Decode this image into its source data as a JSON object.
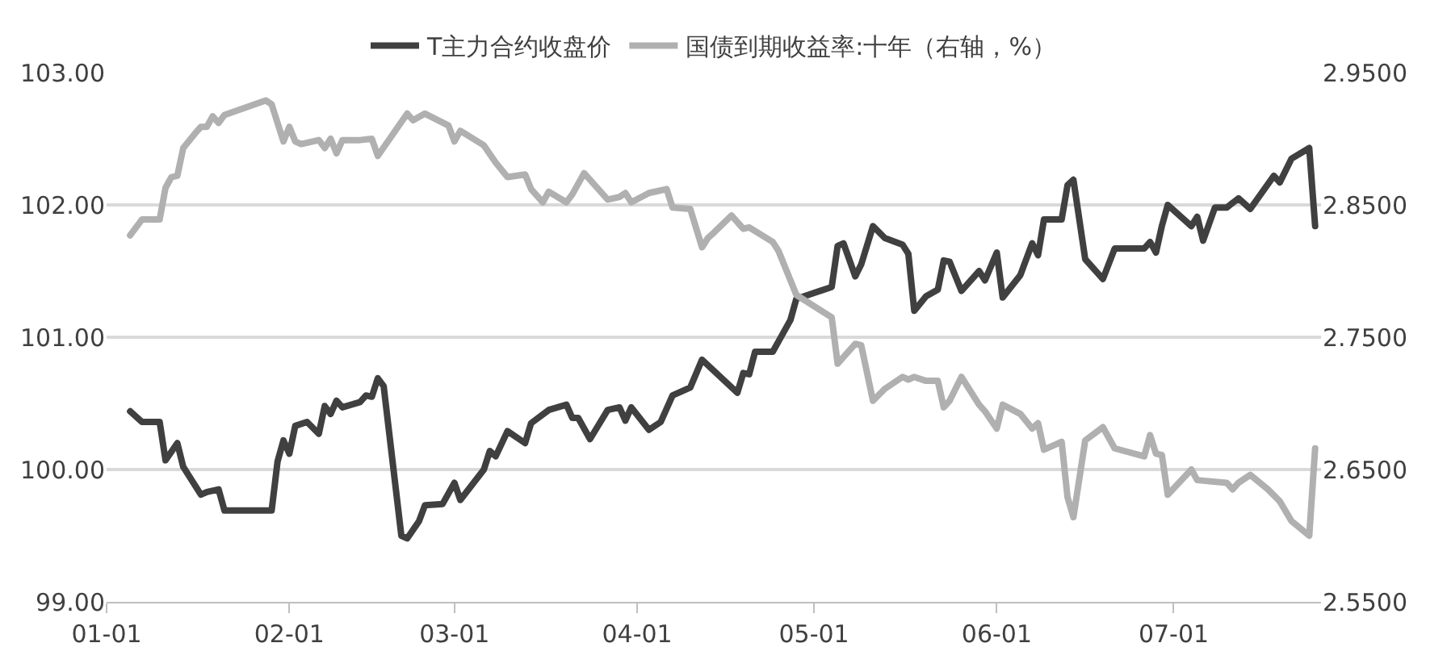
{
  "chart_data": {
    "type": "line",
    "xlim": [
      "--01-01",
      "--07-26"
    ],
    "xticks": [
      {
        "value": "--01-01",
        "label": "01-01"
      },
      {
        "value": "--02-01",
        "label": "02-01"
      },
      {
        "value": "--03-01",
        "label": "03-01"
      },
      {
        "value": "--04-01",
        "label": "04-01"
      },
      {
        "value": "--05-01",
        "label": "05-01"
      },
      {
        "value": "--06-01",
        "label": "06-01"
      },
      {
        "value": "--07-01",
        "label": "07-01"
      }
    ],
    "ylim": [
      99,
      103
    ],
    "yticks": [
      {
        "value": 99,
        "label": "99.00"
      },
      {
        "value": 100,
        "label": "100.00"
      },
      {
        "value": 101,
        "label": "101.00"
      },
      {
        "value": 102,
        "label": "102.00"
      },
      {
        "value": 103,
        "label": "103.00"
      }
    ],
    "y2lim": [
      2.55,
      2.95
    ],
    "y2ticks": [
      {
        "value": 2.55,
        "label": "2.5500"
      },
      {
        "value": 2.65,
        "label": "2.6500"
      },
      {
        "value": 2.75,
        "label": "2.7500"
      },
      {
        "value": 2.85,
        "label": "2.8500"
      },
      {
        "value": 2.95,
        "label": "2.9500"
      }
    ],
    "grid": "y",
    "legend": "top",
    "marker": "none",
    "line_style": "solid",
    "series": [
      {
        "name": "T主力合约收盘价",
        "color": "#404040",
        "x": [
          "--01-05",
          "--01-07",
          "--01-10",
          "--01-11",
          "--01-13",
          "--01-14",
          "--01-17",
          "--01-18",
          "--01-20",
          "--01-21",
          "--01-29",
          "--01-30",
          "--01-31",
          "--02-01",
          "--02-02",
          "--02-04",
          "--02-06",
          "--02-07",
          "--02-08",
          "--02-09",
          "--02-10",
          "--02-13",
          "--02-14",
          "--02-15",
          "--02-16",
          "--02-17",
          "--02-20",
          "--02-21",
          "--02-23",
          "--02-24",
          "--02-27",
          "--03-01",
          "--03-02",
          "--03-06",
          "--03-07",
          "--03-08",
          "--03-10",
          "--03-13",
          "--03-14",
          "--03-17",
          "--03-20",
          "--03-21",
          "--03-22",
          "--03-24",
          "--03-27",
          "--03-29",
          "--03-30",
          "--03-31",
          "--04-03",
          "--04-05",
          "--04-07",
          "--04-10",
          "--04-12",
          "--04-18",
          "--04-19",
          "--04-20",
          "--04-21",
          "--04-24",
          "--04-25",
          "--04-27",
          "--04-28",
          "--05-04",
          "--05-05",
          "--05-06",
          "--05-08",
          "--05-09",
          "--05-11",
          "--05-13",
          "--05-16",
          "--05-17",
          "--05-18",
          "--05-20",
          "--05-22",
          "--05-23",
          "--05-24",
          "--05-26",
          "--05-29",
          "--05-30",
          "--06-01",
          "--06-02",
          "--06-05",
          "--06-07",
          "--06-08",
          "--06-09",
          "--06-12",
          "--06-13",
          "--06-14",
          "--06-16",
          "--06-19",
          "--06-21",
          "--06-26",
          "--06-27",
          "--06-28",
          "--06-29",
          "--06-30",
          "--07-04",
          "--07-05",
          "--07-06",
          "--07-08",
          "--07-10",
          "--07-12",
          "--07-14",
          "--07-18",
          "--07-19",
          "--07-21",
          "--07-24",
          "--07-25"
        ],
        "values": [
          100.44,
          100.36,
          100.36,
          100.07,
          100.2,
          100.02,
          99.81,
          99.83,
          99.85,
          99.69,
          99.69,
          100.06,
          100.22,
          100.12,
          100.33,
          100.36,
          100.27,
          100.48,
          100.42,
          100.52,
          100.47,
          100.51,
          100.56,
          100.55,
          100.69,
          100.63,
          99.5,
          99.48,
          99.61,
          99.73,
          99.74,
          99.9,
          99.77,
          100.0,
          100.14,
          100.1,
          100.29,
          100.2,
          100.35,
          100.45,
          100.49,
          100.39,
          100.39,
          100.23,
          100.45,
          100.47,
          100.37,
          100.47,
          100.3,
          100.36,
          100.56,
          100.62,
          100.83,
          100.58,
          100.73,
          100.72,
          100.89,
          100.89,
          100.97,
          101.13,
          101.29,
          101.38,
          101.69,
          101.71,
          101.46,
          101.55,
          101.84,
          101.75,
          101.7,
          101.63,
          101.2,
          101.31,
          101.36,
          101.58,
          101.57,
          101.35,
          101.5,
          101.43,
          101.64,
          101.3,
          101.47,
          101.71,
          101.62,
          101.89,
          101.89,
          102.15,
          102.19,
          101.59,
          101.44,
          101.67,
          101.67,
          101.72,
          101.64,
          101.84,
          102.0,
          101.84,
          101.91,
          101.73,
          101.98,
          101.98,
          102.05,
          101.97,
          102.22,
          102.17,
          102.35,
          102.43,
          101.84
        ]
      },
      {
        "name": "国债到期收益率:十年（右轴，%）",
        "color": "#b0b0b0",
        "axis": "y2",
        "x": [
          "--01-05",
          "--01-07",
          "--01-10",
          "--01-11",
          "--01-12",
          "--01-13",
          "--01-14",
          "--01-16",
          "--01-17",
          "--01-18",
          "--01-19",
          "--01-20",
          "--01-21",
          "--01-28",
          "--01-29",
          "--01-31",
          "--02-01",
          "--02-02",
          "--02-03",
          "--02-06",
          "--02-07",
          "--02-08",
          "--02-09",
          "--02-10",
          "--02-13",
          "--02-15",
          "--02-16",
          "--02-21",
          "--02-22",
          "--02-24",
          "--02-28",
          "--03-01",
          "--03-02",
          "--03-06",
          "--03-08",
          "--03-10",
          "--03-13",
          "--03-14",
          "--03-16",
          "--03-17",
          "--03-20",
          "--03-21",
          "--03-23",
          "--03-27",
          "--03-29",
          "--03-30",
          "--03-31",
          "--04-03",
          "--04-06",
          "--04-07",
          "--04-10",
          "--04-12",
          "--04-13",
          "--04-14",
          "--04-17",
          "--04-19",
          "--04-20",
          "--04-24",
          "--04-25",
          "--04-28",
          "--05-04",
          "--05-05",
          "--05-08",
          "--05-09",
          "--05-11",
          "--05-13",
          "--05-16",
          "--05-17",
          "--05-18",
          "--05-20",
          "--05-22",
          "--05-23",
          "--05-24",
          "--05-26",
          "--05-29",
          "--05-30",
          "--06-01",
          "--06-02",
          "--06-05",
          "--06-07",
          "--06-08",
          "--06-09",
          "--06-12",
          "--06-13",
          "--06-14",
          "--06-16",
          "--06-19",
          "--06-21",
          "--06-26",
          "--06-27",
          "--06-28",
          "--06-29",
          "--06-30",
          "--07-04",
          "--07-05",
          "--07-10",
          "--07-11",
          "--07-12",
          "--07-14",
          "--07-17",
          "--07-19",
          "--07-21",
          "--07-24",
          "--07-25"
        ],
        "values": [
          2.827,
          2.839,
          2.839,
          2.863,
          2.871,
          2.872,
          2.893,
          2.904,
          2.909,
          2.909,
          2.917,
          2.912,
          2.918,
          2.929,
          2.926,
          2.898,
          2.909,
          2.898,
          2.896,
          2.899,
          2.893,
          2.9,
          2.889,
          2.899,
          2.899,
          2.9,
          2.887,
          2.919,
          2.914,
          2.919,
          2.91,
          2.898,
          2.906,
          2.895,
          2.882,
          2.871,
          2.873,
          2.862,
          2.852,
          2.86,
          2.852,
          2.858,
          2.874,
          2.854,
          2.856,
          2.859,
          2.852,
          2.859,
          2.862,
          2.848,
          2.847,
          2.818,
          2.825,
          2.829,
          2.842,
          2.832,
          2.833,
          2.822,
          2.815,
          2.782,
          2.765,
          2.73,
          2.745,
          2.744,
          2.702,
          2.711,
          2.72,
          2.718,
          2.72,
          2.717,
          2.717,
          2.697,
          2.702,
          2.72,
          2.699,
          2.694,
          2.681,
          2.699,
          2.692,
          2.681,
          2.685,
          2.665,
          2.671,
          2.629,
          2.614,
          2.672,
          2.682,
          2.666,
          2.66,
          2.676,
          2.662,
          2.661,
          2.631,
          2.65,
          2.642,
          2.64,
          2.635,
          2.64,
          2.646,
          2.635,
          2.626,
          2.611,
          2.6,
          2.666
        ]
      }
    ]
  }
}
